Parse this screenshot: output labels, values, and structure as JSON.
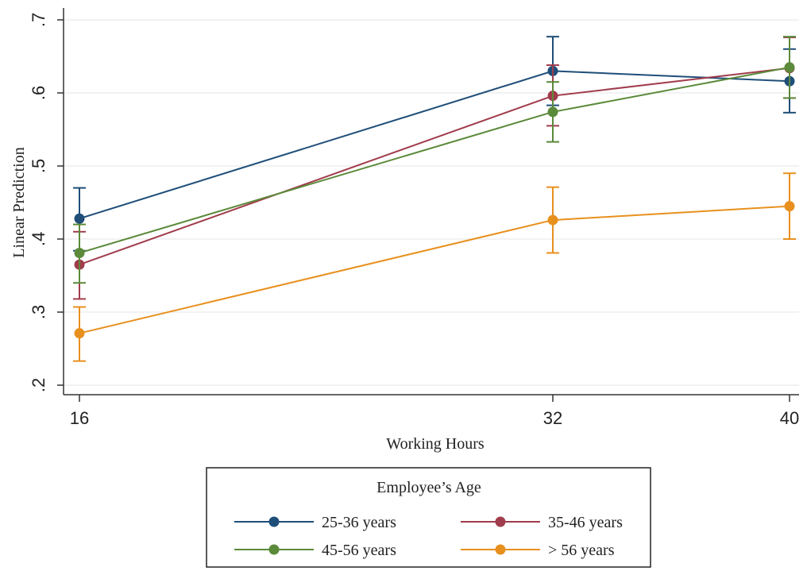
{
  "chart_data": {
    "type": "line",
    "title": "",
    "xlabel": "Working Hours",
    "ylabel": "Linear Prediction",
    "x": [
      16,
      32,
      40
    ],
    "x_tick_labels": [
      "16",
      "32",
      "40"
    ],
    "xlim": [
      16,
      40
    ],
    "ylim": [
      0.2,
      0.7
    ],
    "y_ticks": [
      0.2,
      0.3,
      0.4,
      0.5,
      0.6,
      0.7
    ],
    "y_tick_labels": [
      ".2",
      ".3",
      ".4",
      ".5",
      ".6",
      ".7"
    ],
    "grid": true,
    "error_bars": true,
    "legend": {
      "title": "Employee’s Age",
      "placement": "bottom"
    },
    "series": [
      {
        "name": "25-36 years",
        "color": "#1f4e79",
        "values": [
          0.428,
          0.63,
          0.616
        ],
        "ci_low": [
          0.384,
          0.583,
          0.573
        ],
        "ci_high": [
          0.47,
          0.677,
          0.66
        ]
      },
      {
        "name": "35-46 years",
        "color": "#a03c4b",
        "values": [
          0.365,
          0.596,
          0.634
        ],
        "ci_low": [
          0.318,
          0.555,
          0.593
        ],
        "ci_high": [
          0.41,
          0.638,
          0.676
        ]
      },
      {
        "name": "45-56 years",
        "color": "#5b8a3a",
        "values": [
          0.381,
          0.574,
          0.635
        ],
        "ci_low": [
          0.34,
          0.533,
          0.593
        ],
        "ci_high": [
          0.42,
          0.615,
          0.677
        ]
      },
      {
        "name": "> 56 years",
        "color": "#e8901e",
        "values": [
          0.271,
          0.426,
          0.445
        ],
        "ci_low": [
          0.233,
          0.381,
          0.4
        ],
        "ci_high": [
          0.307,
          0.471,
          0.49
        ]
      }
    ]
  }
}
